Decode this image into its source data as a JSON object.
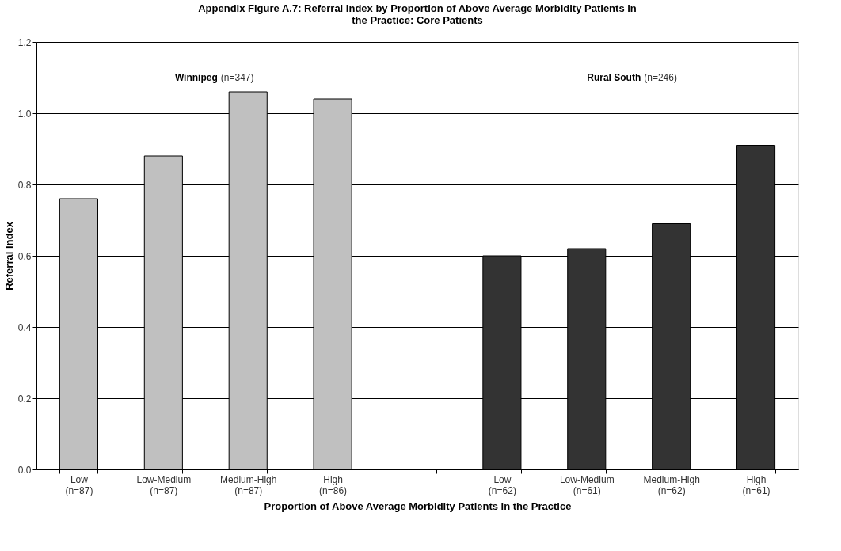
{
  "chart_data": {
    "type": "bar",
    "title": "Appendix Figure A.7:  Referral Index by Proportion of Above Average Morbidity Patients in the Practice: Core Patients",
    "xlabel": "Proportion of Above Average Morbidity Patients in the Practice",
    "ylabel": "Referral Index",
    "categories": [
      "Low\n(n=87)",
      "Low-Medium\n(n=87)",
      "Medium-High\n(n=87)",
      "High\n(n=86)",
      null,
      "Low\n(n=62)",
      "Low-Medium\n(n=61)",
      "Medium-High\n(n=62)",
      "High\n(n=61)"
    ],
    "series": [
      {
        "name": "Winnipeg (n=347)",
        "color": "#c0c0c0",
        "values": [
          0.76,
          0.88,
          1.06,
          1.04,
          null,
          null,
          null,
          null,
          null
        ]
      },
      {
        "name": "Rural South (n=246)",
        "color": "#333333",
        "values": [
          null,
          null,
          null,
          null,
          null,
          0.6,
          0.62,
          0.69,
          0.91
        ]
      }
    ],
    "ylim": [
      0,
      1.2
    ],
    "yticks": [
      {
        "value": 0,
        "label": "0.0"
      },
      {
        "value": 0.2,
        "label": "0.2"
      },
      {
        "value": 0.4,
        "label": "0.4"
      },
      {
        "value": 0.6,
        "label": "0.6"
      },
      {
        "value": 0.8,
        "label": "0.8"
      },
      {
        "value": 1.0,
        "label": "1.0"
      },
      {
        "value": 1.2,
        "label": "1.2"
      }
    ],
    "grid": "y"
  }
}
